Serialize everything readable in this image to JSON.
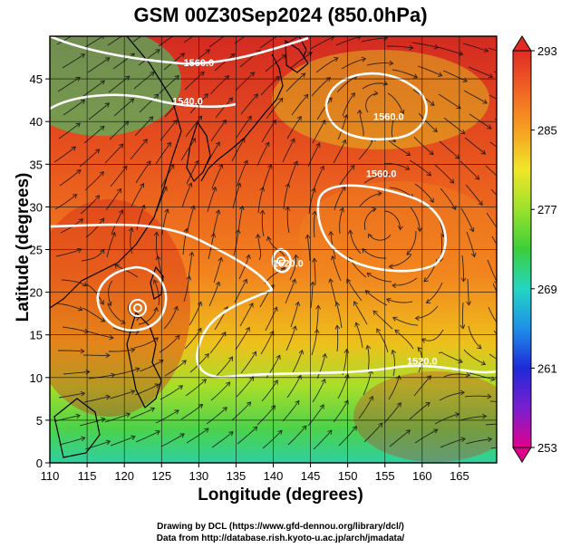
{
  "title": "GSM 00Z30Sep2024 (850.0hPa)",
  "xlabel": "Longitude (degrees)",
  "ylabel": "Latitude  (degrees)",
  "credit_line1": "Drawing by DCL (https://www.gfd-dennou.org/library/dcl/)",
  "credit_line2": "Data from http://database.rish.kyoto-u.ac.jp/arch/jmadata/",
  "chart_data": {
    "type": "heatmap",
    "field": "temperature with geopotential height contours and streamlines",
    "xlim": [
      110,
      170
    ],
    "ylim": [
      0,
      50
    ],
    "x_ticks": [
      110,
      115,
      120,
      125,
      130,
      135,
      140,
      145,
      150,
      155,
      160,
      165
    ],
    "y_ticks": [
      0,
      5,
      10,
      15,
      20,
      25,
      30,
      35,
      40,
      45
    ],
    "grid": true,
    "colorbar": {
      "min": 253,
      "max": 293,
      "labels": [
        293,
        285,
        277,
        269,
        261,
        253
      ],
      "colors": [
        "#e0008c",
        "#7a1fd0",
        "#1e2ad8",
        "#1e90e8",
        "#22d6c2",
        "#3ccf3a",
        "#9be22c",
        "#f0e628",
        "#f6a020",
        "#f06424",
        "#e02b24"
      ]
    },
    "contour_labels": [
      {
        "text": "1560.0",
        "lon": 155.5,
        "lat": 40.2
      },
      {
        "text": "1560.0",
        "lon": 154.5,
        "lat": 33.5
      },
      {
        "text": "1520.0",
        "lon": 142.0,
        "lat": 23.0
      },
      {
        "text": "1520.0",
        "lon": 160.0,
        "lat": 11.5
      },
      {
        "text": "1560.0",
        "lon": 130.0,
        "lat": 46.5
      },
      {
        "text": "1540.0",
        "lon": 128.5,
        "lat": 42.0
      }
    ],
    "cyclones": [
      {
        "lon": 122.0,
        "lat": 20.0
      },
      {
        "lon": 141.0,
        "lat": 26.0
      }
    ]
  }
}
